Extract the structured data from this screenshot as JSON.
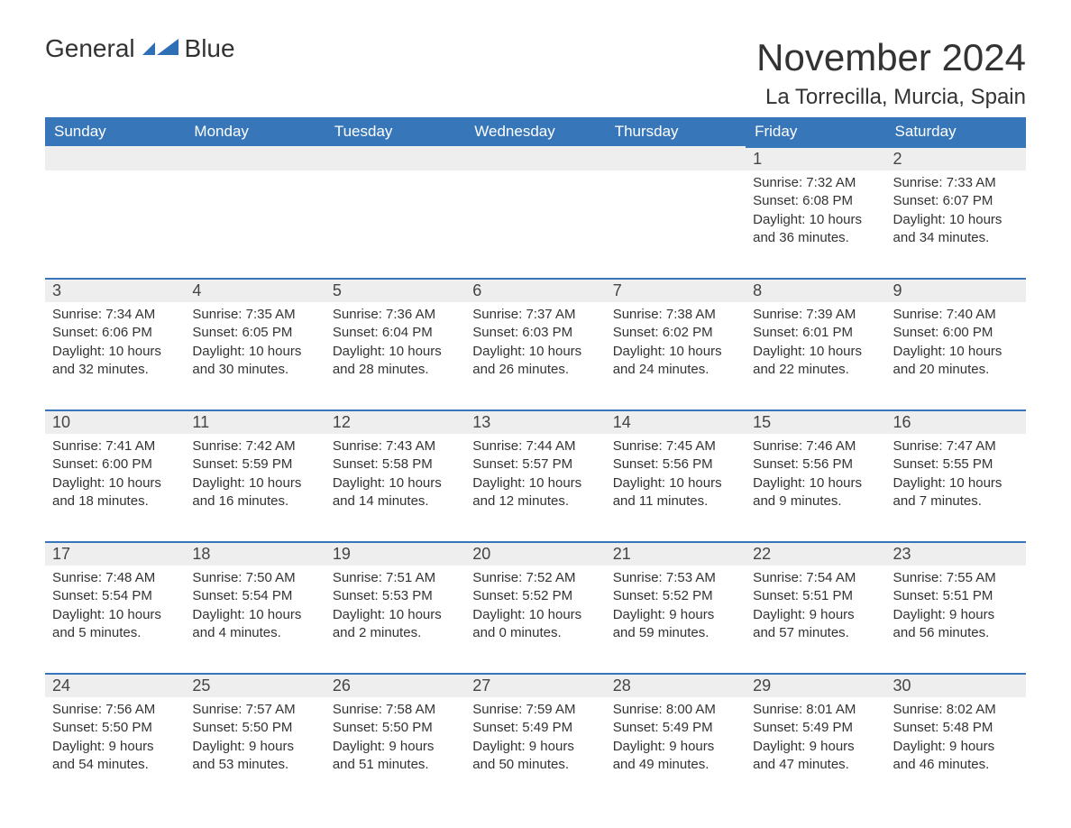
{
  "logo": {
    "text_general": "General",
    "text_blue": "Blue",
    "icon_color": "#2e6fb5"
  },
  "header": {
    "month_title": "November 2024",
    "location": "La Torrecilla, Murcia, Spain"
  },
  "colors": {
    "header_bg": "#3776b8",
    "header_text": "#ffffff",
    "day_header_bg": "#eeeeee",
    "day_border": "#3776b8",
    "body_text": "#333333",
    "logo_blue": "#2e6fb5"
  },
  "calendar": {
    "day_headers": [
      "Sunday",
      "Monday",
      "Tuesday",
      "Wednesday",
      "Thursday",
      "Friday",
      "Saturday"
    ],
    "weeks": [
      [
        null,
        null,
        null,
        null,
        null,
        {
          "day": "1",
          "sunrise": "Sunrise: 7:32 AM",
          "sunset": "Sunset: 6:08 PM",
          "daylight": "Daylight: 10 hours and 36 minutes."
        },
        {
          "day": "2",
          "sunrise": "Sunrise: 7:33 AM",
          "sunset": "Sunset: 6:07 PM",
          "daylight": "Daylight: 10 hours and 34 minutes."
        }
      ],
      [
        {
          "day": "3",
          "sunrise": "Sunrise: 7:34 AM",
          "sunset": "Sunset: 6:06 PM",
          "daylight": "Daylight: 10 hours and 32 minutes."
        },
        {
          "day": "4",
          "sunrise": "Sunrise: 7:35 AM",
          "sunset": "Sunset: 6:05 PM",
          "daylight": "Daylight: 10 hours and 30 minutes."
        },
        {
          "day": "5",
          "sunrise": "Sunrise: 7:36 AM",
          "sunset": "Sunset: 6:04 PM",
          "daylight": "Daylight: 10 hours and 28 minutes."
        },
        {
          "day": "6",
          "sunrise": "Sunrise: 7:37 AM",
          "sunset": "Sunset: 6:03 PM",
          "daylight": "Daylight: 10 hours and 26 minutes."
        },
        {
          "day": "7",
          "sunrise": "Sunrise: 7:38 AM",
          "sunset": "Sunset: 6:02 PM",
          "daylight": "Daylight: 10 hours and 24 minutes."
        },
        {
          "day": "8",
          "sunrise": "Sunrise: 7:39 AM",
          "sunset": "Sunset: 6:01 PM",
          "daylight": "Daylight: 10 hours and 22 minutes."
        },
        {
          "day": "9",
          "sunrise": "Sunrise: 7:40 AM",
          "sunset": "Sunset: 6:00 PM",
          "daylight": "Daylight: 10 hours and 20 minutes."
        }
      ],
      [
        {
          "day": "10",
          "sunrise": "Sunrise: 7:41 AM",
          "sunset": "Sunset: 6:00 PM",
          "daylight": "Daylight: 10 hours and 18 minutes."
        },
        {
          "day": "11",
          "sunrise": "Sunrise: 7:42 AM",
          "sunset": "Sunset: 5:59 PM",
          "daylight": "Daylight: 10 hours and 16 minutes."
        },
        {
          "day": "12",
          "sunrise": "Sunrise: 7:43 AM",
          "sunset": "Sunset: 5:58 PM",
          "daylight": "Daylight: 10 hours and 14 minutes."
        },
        {
          "day": "13",
          "sunrise": "Sunrise: 7:44 AM",
          "sunset": "Sunset: 5:57 PM",
          "daylight": "Daylight: 10 hours and 12 minutes."
        },
        {
          "day": "14",
          "sunrise": "Sunrise: 7:45 AM",
          "sunset": "Sunset: 5:56 PM",
          "daylight": "Daylight: 10 hours and 11 minutes."
        },
        {
          "day": "15",
          "sunrise": "Sunrise: 7:46 AM",
          "sunset": "Sunset: 5:56 PM",
          "daylight": "Daylight: 10 hours and 9 minutes."
        },
        {
          "day": "16",
          "sunrise": "Sunrise: 7:47 AM",
          "sunset": "Sunset: 5:55 PM",
          "daylight": "Daylight: 10 hours and 7 minutes."
        }
      ],
      [
        {
          "day": "17",
          "sunrise": "Sunrise: 7:48 AM",
          "sunset": "Sunset: 5:54 PM",
          "daylight": "Daylight: 10 hours and 5 minutes."
        },
        {
          "day": "18",
          "sunrise": "Sunrise: 7:50 AM",
          "sunset": "Sunset: 5:54 PM",
          "daylight": "Daylight: 10 hours and 4 minutes."
        },
        {
          "day": "19",
          "sunrise": "Sunrise: 7:51 AM",
          "sunset": "Sunset: 5:53 PM",
          "daylight": "Daylight: 10 hours and 2 minutes."
        },
        {
          "day": "20",
          "sunrise": "Sunrise: 7:52 AM",
          "sunset": "Sunset: 5:52 PM",
          "daylight": "Daylight: 10 hours and 0 minutes."
        },
        {
          "day": "21",
          "sunrise": "Sunrise: 7:53 AM",
          "sunset": "Sunset: 5:52 PM",
          "daylight": "Daylight: 9 hours and 59 minutes."
        },
        {
          "day": "22",
          "sunrise": "Sunrise: 7:54 AM",
          "sunset": "Sunset: 5:51 PM",
          "daylight": "Daylight: 9 hours and 57 minutes."
        },
        {
          "day": "23",
          "sunrise": "Sunrise: 7:55 AM",
          "sunset": "Sunset: 5:51 PM",
          "daylight": "Daylight: 9 hours and 56 minutes."
        }
      ],
      [
        {
          "day": "24",
          "sunrise": "Sunrise: 7:56 AM",
          "sunset": "Sunset: 5:50 PM",
          "daylight": "Daylight: 9 hours and 54 minutes."
        },
        {
          "day": "25",
          "sunrise": "Sunrise: 7:57 AM",
          "sunset": "Sunset: 5:50 PM",
          "daylight": "Daylight: 9 hours and 53 minutes."
        },
        {
          "day": "26",
          "sunrise": "Sunrise: 7:58 AM",
          "sunset": "Sunset: 5:50 PM",
          "daylight": "Daylight: 9 hours and 51 minutes."
        },
        {
          "day": "27",
          "sunrise": "Sunrise: 7:59 AM",
          "sunset": "Sunset: 5:49 PM",
          "daylight": "Daylight: 9 hours and 50 minutes."
        },
        {
          "day": "28",
          "sunrise": "Sunrise: 8:00 AM",
          "sunset": "Sunset: 5:49 PM",
          "daylight": "Daylight: 9 hours and 49 minutes."
        },
        {
          "day": "29",
          "sunrise": "Sunrise: 8:01 AM",
          "sunset": "Sunset: 5:49 PM",
          "daylight": "Daylight: 9 hours and 47 minutes."
        },
        {
          "day": "30",
          "sunrise": "Sunrise: 8:02 AM",
          "sunset": "Sunset: 5:48 PM",
          "daylight": "Daylight: 9 hours and 46 minutes."
        }
      ]
    ]
  }
}
